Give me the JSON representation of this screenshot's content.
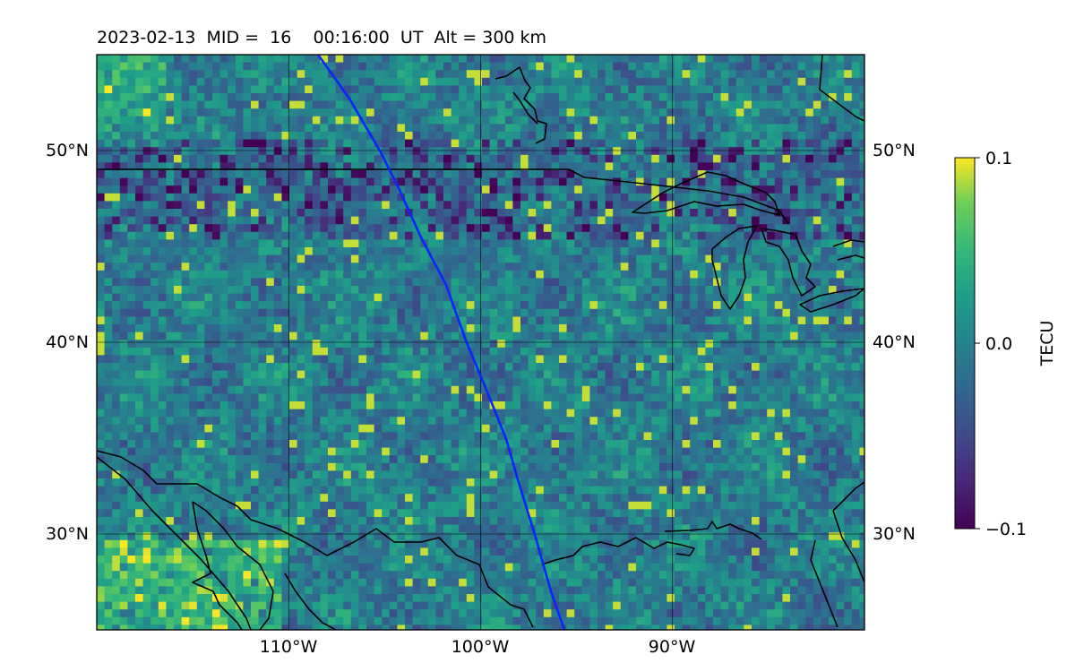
{
  "title": "2023-02-13  MID =  16    00:16:00  UT  Alt = 300 km",
  "map": {
    "lat_ticks": [
      {
        "value": 50,
        "label": "50°N"
      },
      {
        "value": 40,
        "label": "40°N"
      },
      {
        "value": 30,
        "label": "30°N"
      }
    ],
    "lon_ticks": [
      {
        "value": -110,
        "label": "110°W"
      },
      {
        "value": -100,
        "label": "100°W"
      },
      {
        "value": -90,
        "label": "90°W"
      }
    ],
    "extent": {
      "lon": [
        -120,
        -80
      ],
      "lat": [
        25,
        55
      ]
    },
    "grid": true,
    "track_color": "#0a24ff"
  },
  "colorbar": {
    "label": "TECU",
    "ticks": [
      {
        "value": 0.1,
        "label": "0.1"
      },
      {
        "value": 0.0,
        "label": "0.0"
      },
      {
        "value": -0.1,
        "label": "−0.1"
      }
    ],
    "colormap": "viridis",
    "range": [
      -0.1,
      0.1
    ]
  }
}
